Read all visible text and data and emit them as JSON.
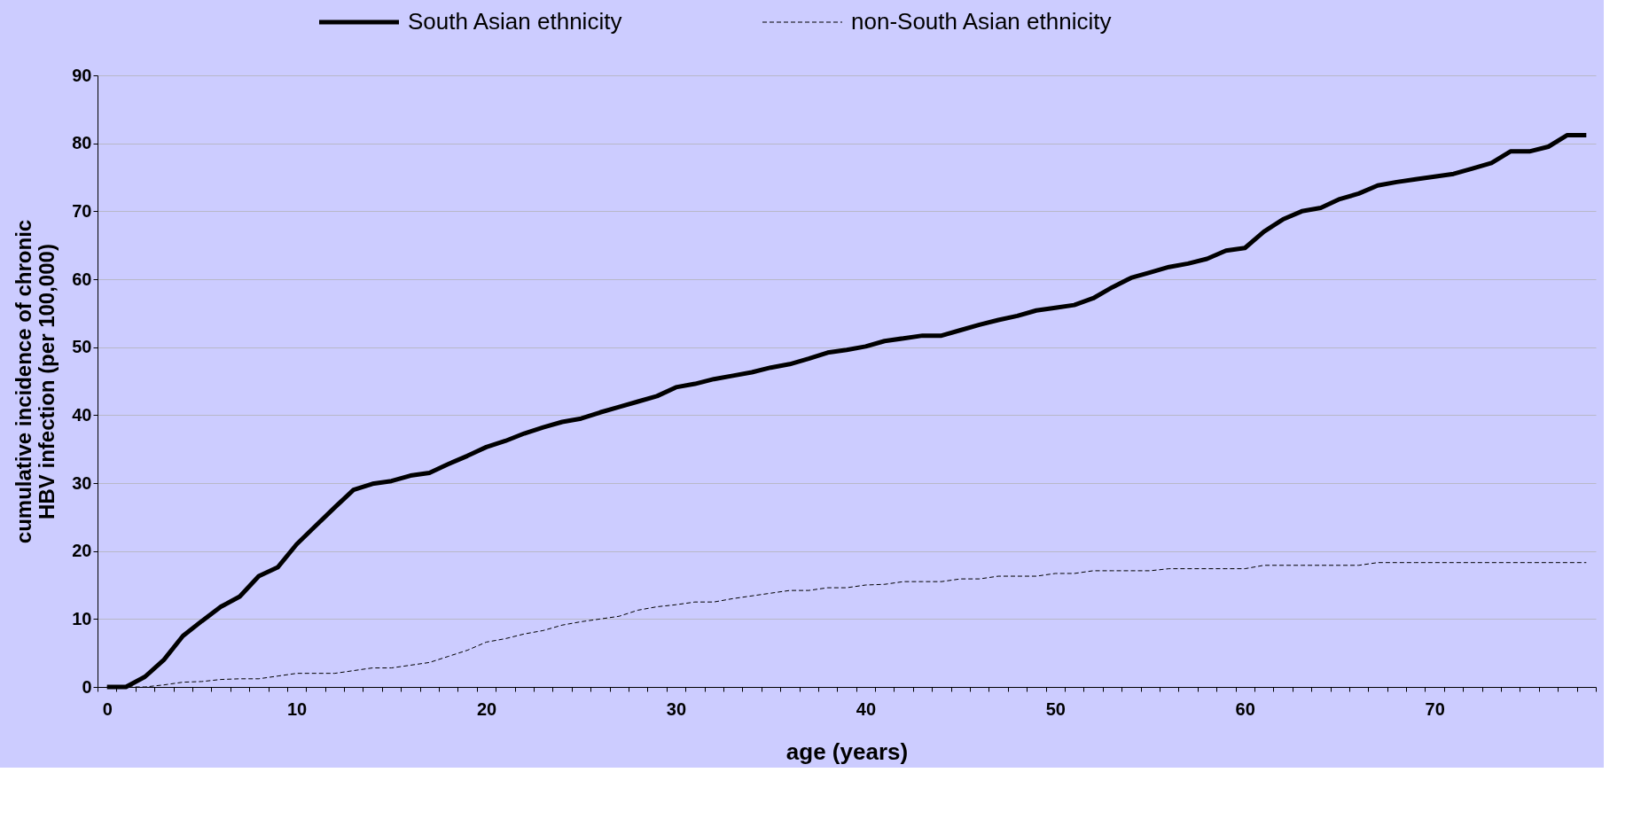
{
  "chart_data": {
    "type": "line",
    "xlabel": "age (years)",
    "ylabel": "cumulative incidence of chronic\nHBV infection (per 100,000)",
    "categories": [
      "0",
      null,
      null,
      null,
      null,
      null,
      null,
      null,
      null,
      null,
      "10",
      null,
      null,
      null,
      null,
      null,
      null,
      null,
      null,
      null,
      "20",
      null,
      null,
      null,
      null,
      null,
      null,
      null,
      null,
      null,
      "30",
      null,
      null,
      null,
      null,
      null,
      null,
      null,
      null,
      null,
      "40",
      null,
      null,
      null,
      null,
      null,
      null,
      null,
      null,
      null,
      "50",
      null,
      null,
      null,
      null,
      null,
      null,
      null,
      null,
      null,
      "60",
      null,
      null,
      null,
      null,
      null,
      null,
      null,
      null,
      null,
      "70",
      null,
      null,
      null,
      null,
      null,
      null,
      null,
      null
    ],
    "series": [
      {
        "name": "South Asian ethnicity",
        "color": "#000000",
        "line_style": "solid",
        "values": [
          0,
          0,
          1.5,
          4,
          7.5,
          9.7,
          11.8,
          13.3,
          16.3,
          17.6,
          21,
          23.7,
          26.4,
          29,
          29.9,
          30.3,
          31.1,
          31.5,
          32.8,
          34,
          35.3,
          36.2,
          37.3,
          38.2,
          39,
          39.5,
          40.4,
          41.2,
          42,
          42.8,
          44.1,
          44.6,
          45.3,
          45.8,
          46.3,
          47,
          47.5,
          48.3,
          49.2,
          49.6,
          50.1,
          50.9,
          51.3,
          51.7,
          51.7,
          52.5,
          53.3,
          54,
          54.6,
          55.4,
          55.8,
          56.2,
          57.2,
          58.8,
          60.2,
          61.0,
          61.8,
          62.3,
          63.0,
          64.2,
          64.6,
          67.0,
          68.8,
          70.0,
          70.5,
          71.8,
          72.6,
          73.8,
          74.3,
          74.7,
          75.1,
          75.5,
          76.3,
          77.1,
          78.8,
          78.8,
          79.5,
          81.2,
          81.2
        ]
      },
      {
        "name": "non-South Asian ethnicity",
        "color": "#000000",
        "line_style": "dashed",
        "values": [
          0,
          0,
          0,
          0.3,
          0.7,
          0.8,
          1.1,
          1.2,
          1.2,
          1.6,
          2,
          2,
          2,
          2.4,
          2.8,
          2.8,
          3.2,
          3.6,
          4.5,
          5.4,
          6.6,
          7.1,
          7.8,
          8.3,
          9.1,
          9.6,
          10,
          10.4,
          11.3,
          11.8,
          12.1,
          12.5,
          12.5,
          13,
          13.4,
          13.8,
          14.2,
          14.2,
          14.6,
          14.6,
          15,
          15.1,
          15.5,
          15.5,
          15.5,
          15.9,
          15.9,
          16.3,
          16.3,
          16.3,
          16.7,
          16.7,
          17.1,
          17.1,
          17.1,
          17.1,
          17.4,
          17.4,
          17.4,
          17.4,
          17.4,
          17.9,
          17.9,
          17.9,
          17.9,
          17.9,
          17.9,
          18.3,
          18.3,
          18.3,
          18.3,
          18.3,
          18.3,
          18.3,
          18.3,
          18.3,
          18.3,
          18.3,
          18.3
        ]
      }
    ],
    "ylim": [
      0,
      90
    ],
    "yticks": [
      0,
      10,
      20,
      30,
      40,
      50,
      60,
      70,
      80,
      90
    ],
    "grid": "y",
    "legend": "top"
  }
}
